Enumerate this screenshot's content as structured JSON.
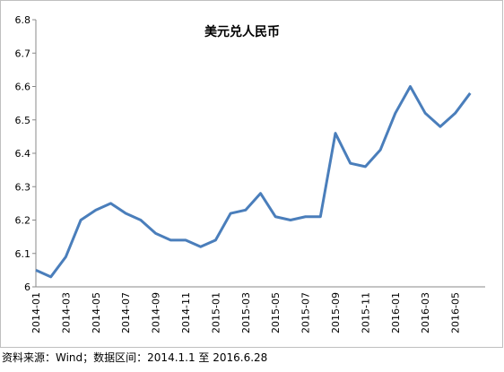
{
  "chart_data": {
    "type": "line",
    "title": "美元兑人民币",
    "categories": [
      "2014-01",
      null,
      "2014-03",
      null,
      "2014-05",
      null,
      "2014-07",
      null,
      "2014-09",
      null,
      "2014-11",
      null,
      "2015-01",
      null,
      "2015-03",
      null,
      "2015-05",
      null,
      "2015-07",
      null,
      "2015-09",
      null,
      "2015-11",
      null,
      "2016-01",
      null,
      "2016-03",
      null,
      "2016-05",
      null
    ],
    "series": [
      {
        "name": "美元兑人民币",
        "color": "#4a7ebb",
        "values": [
          6.05,
          6.03,
          6.09,
          6.2,
          6.23,
          6.25,
          6.22,
          6.2,
          6.16,
          6.14,
          6.14,
          6.12,
          6.14,
          6.22,
          6.23,
          6.28,
          6.21,
          6.2,
          6.21,
          6.21,
          6.46,
          6.37,
          6.36,
          6.41,
          6.52,
          6.6,
          6.52,
          6.48,
          6.52,
          6.58
        ]
      }
    ],
    "ylim": [
      6,
      6.8
    ],
    "yticks": [
      6,
      6.1,
      6.2,
      6.3,
      6.4,
      6.5,
      6.6,
      6.7,
      6.8
    ],
    "grid": false,
    "source": "资料来源：Wind；数据区间：2014.1.1 至 2016.6.28"
  }
}
